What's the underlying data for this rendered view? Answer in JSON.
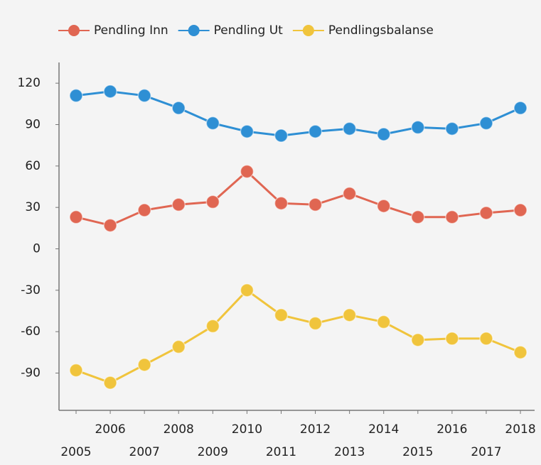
{
  "chart_data": {
    "type": "line",
    "categories": [
      2005,
      2006,
      2007,
      2008,
      2009,
      2010,
      2011,
      2012,
      2013,
      2014,
      2015,
      2016,
      2017,
      2018
    ],
    "series": [
      {
        "name": "Pendling Inn",
        "color": "#e06652",
        "values": [
          23,
          17,
          28,
          32,
          34,
          56,
          33,
          32,
          40,
          31,
          23,
          23,
          26,
          28
        ]
      },
      {
        "name": "Pendling Ut",
        "color": "#2e8fd4",
        "values": [
          111,
          114,
          111,
          102,
          91,
          85,
          82,
          85,
          87,
          83,
          88,
          87,
          91,
          102
        ]
      },
      {
        "name": "Pendlingsbalanse",
        "color": "#f0c43c",
        "values": [
          -88,
          -97,
          -84,
          -71,
          -56,
          -30,
          -48,
          -54,
          -48,
          -53,
          -66,
          -65,
          -65,
          -75
        ]
      }
    ],
    "ylim": [
      -117,
      135
    ],
    "yticks": [
      -90,
      -60,
      -30,
      0,
      30,
      60,
      90,
      120
    ],
    "legend": "top"
  }
}
